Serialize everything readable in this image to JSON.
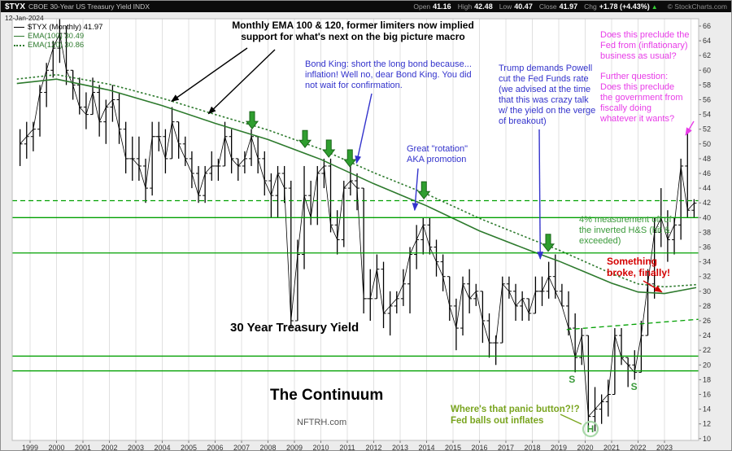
{
  "header": {
    "symbol": "$TYX",
    "description": "CBOE 30-Year US Treasury Yield INDX",
    "date": "12-Jan-2024",
    "copyright": "© StockCharts.com",
    "quote": {
      "open_label": "Open",
      "open": "41.16",
      "high_label": "High",
      "high": "42.48",
      "low_label": "Low",
      "low": "40.47",
      "close_label": "Close",
      "close": "41.97",
      "chg_label": "Chg",
      "chg": "+1.78 (+4.43%)",
      "up_arrow": "▲"
    }
  },
  "legend": {
    "price": "$TYX (Monthly) 41.97",
    "ema100": "EMA(100) 30.49",
    "ema120": "EMA(120) 30.86"
  },
  "annotations": {
    "ema_note": "Monthly EMA 100 & 120, former limiters now implied\nsupport for what's next on the big picture macro",
    "bond_king": "Bond King: short the long bond because...\ninflation! Well no, dear Bond King. You did\nnot wait for confirmation.",
    "rotation": "Great \"rotation\"\nAKA promotion",
    "trump": "Trump demands Powell\ncut the Fed Funds rate\n(we advised at the time\nthat this was crazy talk\nw/ the yield on the verge\nof breakout)",
    "fed_question": "Does this preclude the\nFed from (inflationary)\nbusiness as usual?",
    "fiscal_question": "Further question:\nDoes this preclude\nthe government from\nfiscally doing\nwhatever it wants?",
    "hs_measure": "4% measurement off of\nthe inverted H&S (hit &\nexceeded)",
    "broke": "Something\nbroke, finally!",
    "yield_title": "30 Year Treasury Yield",
    "continuum": "The Continuum",
    "site": "NFTRH.com",
    "panic": "Where's that panic button?!?\nFed balls out inflates",
    "shoulder1": "S",
    "head": "H",
    "shoulder2": "S"
  },
  "chart_data": {
    "type": "ohlc",
    "symbol": "$TYX",
    "timeframe": "Monthly",
    "title": "30 Year Treasury Yield",
    "last_close": 41.97,
    "xlim": [
      1998.4,
      2024.3
    ],
    "ylim": [
      9.5,
      67
    ],
    "x_tick_labels": [
      "1999",
      "2000",
      "2001",
      "2002",
      "2003",
      "2004",
      "2005",
      "2006",
      "2007",
      "2008",
      "2009",
      "2010",
      "2011",
      "2012",
      "2013",
      "2014",
      "2015",
      "2016",
      "2017",
      "2018",
      "2019",
      "2020",
      "2021",
      "2022",
      "2023"
    ],
    "y_ticks": [
      66,
      64,
      62,
      60,
      58,
      56,
      54,
      52,
      50,
      48,
      46,
      44,
      42,
      40,
      38,
      36,
      34,
      32,
      30,
      28,
      26,
      24,
      22,
      20,
      18,
      16,
      14,
      12,
      10
    ],
    "price_quarterly": [
      [
        1998.5,
        47,
        52,
        50
      ],
      [
        1998.75,
        48,
        53,
        51
      ],
      [
        1999.0,
        49,
        53,
        52
      ],
      [
        1999.25,
        51,
        58,
        57
      ],
      [
        1999.5,
        55,
        61,
        60
      ],
      [
        1999.75,
        59,
        64,
        63
      ],
      [
        2000.0,
        61,
        67,
        65
      ],
      [
        2000.25,
        58,
        66,
        60
      ],
      [
        2000.5,
        56,
        60,
        58
      ],
      [
        2000.75,
        54,
        59,
        55
      ],
      [
        2001.0,
        52,
        57,
        54
      ],
      [
        2001.25,
        54,
        59,
        57
      ],
      [
        2001.5,
        51,
        58,
        53
      ],
      [
        2001.75,
        50,
        56,
        55
      ],
      [
        2002.0,
        53,
        58,
        56
      ],
      [
        2002.25,
        50,
        57,
        52
      ],
      [
        2002.5,
        46,
        53,
        48
      ],
      [
        2002.75,
        45,
        51,
        48
      ],
      [
        2003.0,
        45,
        51,
        47
      ],
      [
        2003.25,
        42,
        48,
        44
      ],
      [
        2003.5,
        43,
        53,
        51
      ],
      [
        2003.75,
        49,
        53,
        51
      ],
      [
        2004.0,
        46,
        52,
        48
      ],
      [
        2004.25,
        48,
        55,
        53
      ],
      [
        2004.5,
        48,
        53,
        50
      ],
      [
        2004.75,
        47,
        51,
        48
      ],
      [
        2005.0,
        44,
        49,
        46
      ],
      [
        2005.25,
        42,
        47,
        43
      ],
      [
        2005.5,
        42,
        47,
        46
      ],
      [
        2005.75,
        45,
        49,
        47
      ],
      [
        2006.0,
        45,
        48,
        47
      ],
      [
        2006.25,
        47,
        53,
        51
      ],
      [
        2006.5,
        46,
        52,
        48
      ],
      [
        2006.75,
        45,
        48,
        47
      ],
      [
        2007.0,
        46,
        49,
        48
      ],
      [
        2007.25,
        47,
        52,
        51
      ],
      [
        2007.5,
        46,
        51,
        48
      ],
      [
        2007.75,
        43,
        49,
        45
      ],
      [
        2008.0,
        40,
        46,
        43
      ],
      [
        2008.25,
        40,
        47,
        46
      ],
      [
        2008.5,
        42,
        47,
        44
      ],
      [
        2008.75,
        25,
        45,
        26
      ],
      [
        2009.0,
        26,
        37,
        35
      ],
      [
        2009.25,
        33,
        47,
        43
      ],
      [
        2009.5,
        39,
        45,
        40
      ],
      [
        2009.75,
        39,
        47,
        46
      ],
      [
        2010.0,
        44,
        48,
        47
      ],
      [
        2010.25,
        38,
        48,
        39
      ],
      [
        2010.5,
        35,
        41,
        37
      ],
      [
        2010.75,
        36,
        45,
        44
      ],
      [
        2011.0,
        43,
        47,
        45
      ],
      [
        2011.25,
        41,
        46,
        44
      ],
      [
        2011.5,
        27,
        44,
        29
      ],
      [
        2011.75,
        26,
        33,
        29
      ],
      [
        2012.0,
        29,
        35,
        33
      ],
      [
        2012.25,
        25,
        34,
        27
      ],
      [
        2012.5,
        24,
        30,
        28
      ],
      [
        2012.75,
        27,
        30,
        29
      ],
      [
        2013.0,
        28,
        33,
        31
      ],
      [
        2013.25,
        27,
        36,
        35
      ],
      [
        2013.5,
        33,
        39,
        37
      ],
      [
        2013.75,
        35,
        40,
        39
      ],
      [
        2014.0,
        35,
        40,
        36
      ],
      [
        2014.25,
        32,
        37,
        34
      ],
      [
        2014.5,
        30,
        35,
        32
      ],
      [
        2014.75,
        26,
        32,
        28
      ],
      [
        2015.0,
        22,
        29,
        25
      ],
      [
        2015.25,
        24,
        32,
        31
      ],
      [
        2015.5,
        27,
        33,
        29
      ],
      [
        2015.75,
        28,
        31,
        30
      ],
      [
        2016.0,
        23,
        30,
        26
      ],
      [
        2016.25,
        21,
        27,
        23
      ],
      [
        2016.5,
        20,
        24,
        23
      ],
      [
        2016.75,
        23,
        32,
        31
      ],
      [
        2017.0,
        29,
        32,
        30
      ],
      [
        2017.25,
        26,
        31,
        28
      ],
      [
        2017.5,
        26,
        30,
        29
      ],
      [
        2017.75,
        26,
        29,
        27
      ],
      [
        2018.0,
        27,
        32,
        30
      ],
      [
        2018.25,
        28,
        32,
        30
      ],
      [
        2018.5,
        29,
        34,
        32
      ],
      [
        2018.75,
        29,
        35,
        30
      ],
      [
        2019.0,
        28,
        31,
        28
      ],
      [
        2019.25,
        24,
        30,
        25
      ],
      [
        2019.5,
        19,
        27,
        21
      ],
      [
        2019.75,
        20,
        25,
        24
      ],
      [
        2020.0,
        11.5,
        24,
        13
      ],
      [
        2020.25,
        11,
        17,
        14
      ],
      [
        2020.5,
        12,
        16,
        15
      ],
      [
        2020.75,
        13,
        18,
        16
      ],
      [
        2021.0,
        16,
        25,
        24
      ],
      [
        2021.25,
        20,
        25,
        21
      ],
      [
        2021.5,
        17,
        21,
        20
      ],
      [
        2021.75,
        18,
        22,
        19
      ],
      [
        2022.0,
        19,
        26,
        24
      ],
      [
        2022.25,
        24,
        33,
        31
      ],
      [
        2022.5,
        29,
        40,
        38
      ],
      [
        2022.75,
        36,
        44,
        40
      ],
      [
        2023.0,
        34,
        41,
        37
      ],
      [
        2023.25,
        35,
        40,
        39
      ],
      [
        2023.5,
        37,
        48,
        47
      ],
      [
        2023.75,
        40,
        52,
        41
      ],
      [
        2024.0,
        40,
        42.5,
        41.97
      ]
    ],
    "ema100": [
      [
        1998.5,
        58.2
      ],
      [
        2000,
        58.8
      ],
      [
        2002,
        57.3
      ],
      [
        2004,
        55.2
      ],
      [
        2006,
        52.8
      ],
      [
        2008,
        50.6
      ],
      [
        2010,
        47.9
      ],
      [
        2012,
        44.6
      ],
      [
        2014,
        41.6
      ],
      [
        2016,
        38.2
      ],
      [
        2018,
        35.4
      ],
      [
        2019,
        34.1
      ],
      [
        2020,
        32.6
      ],
      [
        2021,
        31.1
      ],
      [
        2022,
        29.9
      ],
      [
        2023,
        29.7
      ],
      [
        2024.2,
        30.5
      ]
    ],
    "ema120": [
      [
        1998.5,
        58.8
      ],
      [
        2000,
        59.4
      ],
      [
        2002,
        58.1
      ],
      [
        2004,
        56.2
      ],
      [
        2006,
        54.0
      ],
      [
        2008,
        51.9
      ],
      [
        2010,
        49.3
      ],
      [
        2012,
        46.1
      ],
      [
        2014,
        43.2
      ],
      [
        2016,
        39.9
      ],
      [
        2018,
        37.0
      ],
      [
        2019,
        35.6
      ],
      [
        2020,
        34.0
      ],
      [
        2021,
        32.4
      ],
      [
        2022,
        31.0
      ],
      [
        2023,
        30.6
      ],
      [
        2024.2,
        30.9
      ]
    ],
    "levels": [
      {
        "v": 42.3,
        "style": "dashed"
      },
      {
        "v": 40.0,
        "style": "solid"
      },
      {
        "v": 35.2,
        "style": "solid"
      },
      {
        "v": 21.2,
        "style": "solid"
      },
      {
        "v": 19.2,
        "style": "solid"
      }
    ],
    "neckline": {
      "from": [
        2019.3,
        24.8
      ],
      "to": [
        2024.3,
        26.2
      ],
      "style": "dashed"
    },
    "ema_touch_arrow_years": [
      2007.4,
      2009.4,
      2010.3,
      2011.1,
      2013.9,
      2018.6
    ],
    "colors": {
      "price": "#000000",
      "ema": "#2d7a2d",
      "levels": "#00a000",
      "arrow_green": "#2f9e2f",
      "annotation_blue": "#3333cc",
      "annotation_magenta": "#e83ce8",
      "annotation_red": "#d40000",
      "annotation_green": "#3a9a3a",
      "panic_green": "#7aa520",
      "header_bg": "#0b0b0b"
    }
  }
}
